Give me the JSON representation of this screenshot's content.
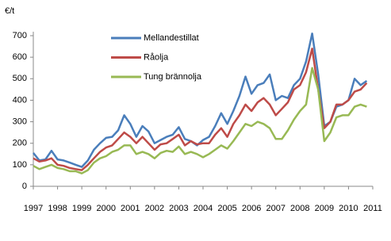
{
  "chart_data": {
    "type": "line",
    "y_label": "€/t",
    "x": [
      1997,
      1997.25,
      1997.5,
      1997.75,
      1998,
      1998.25,
      1998.5,
      1998.75,
      1999,
      1999.25,
      1999.5,
      1999.75,
      2000,
      2000.25,
      2000.5,
      2000.75,
      2001,
      2001.25,
      2001.5,
      2001.75,
      2002,
      2002.25,
      2002.5,
      2002.75,
      2003,
      2003.25,
      2003.5,
      2003.75,
      2004,
      2004.25,
      2004.5,
      2004.75,
      2005,
      2005.25,
      2005.5,
      2005.75,
      2006,
      2006.25,
      2006.5,
      2006.75,
      2007,
      2007.25,
      2007.5,
      2007.75,
      2008,
      2008.25,
      2008.5,
      2008.75,
      2009,
      2009.25,
      2009.5,
      2009.75,
      2010,
      2010.25,
      2010.5,
      2010.75
    ],
    "series": [
      {
        "name": "Mellandestillat",
        "color": "#4a7ebb",
        "values": [
          155,
          120,
          125,
          165,
          125,
          120,
          110,
          100,
          90,
          120,
          170,
          200,
          225,
          230,
          260,
          330,
          290,
          230,
          280,
          255,
          200,
          215,
          230,
          240,
          275,
          220,
          210,
          190,
          215,
          230,
          280,
          340,
          290,
          350,
          420,
          510,
          430,
          470,
          480,
          520,
          400,
          420,
          410,
          470,
          500,
          580,
          710,
          520,
          280,
          300,
          370,
          380,
          400,
          500,
          470,
          490
        ]
      },
      {
        "name": "Råolja",
        "color": "#be4b48",
        "values": [
          130,
          115,
          120,
          130,
          100,
          95,
          85,
          80,
          75,
          100,
          130,
          160,
          180,
          190,
          220,
          250,
          230,
          200,
          230,
          200,
          170,
          195,
          200,
          220,
          240,
          190,
          210,
          195,
          200,
          200,
          240,
          270,
          230,
          290,
          330,
          380,
          350,
          390,
          410,
          380,
          330,
          360,
          390,
          450,
          470,
          530,
          640,
          450,
          270,
          300,
          380,
          380,
          400,
          440,
          450,
          480
        ]
      },
      {
        "name": "Tung brännolja",
        "color": "#98b954",
        "values": [
          95,
          80,
          90,
          100,
          85,
          80,
          70,
          70,
          60,
          75,
          110,
          130,
          140,
          160,
          170,
          190,
          190,
          150,
          160,
          150,
          130,
          155,
          165,
          160,
          185,
          150,
          160,
          150,
          135,
          150,
          170,
          190,
          175,
          210,
          250,
          290,
          280,
          300,
          290,
          270,
          220,
          220,
          260,
          310,
          350,
          380,
          550,
          450,
          210,
          250,
          320,
          330,
          330,
          370,
          380,
          370
        ]
      }
    ],
    "xlim": [
      1997,
      2011
    ],
    "xticks": [
      1997,
      1998,
      1999,
      2000,
      2001,
      2002,
      2003,
      2004,
      2005,
      2006,
      2007,
      2008,
      2009,
      2010,
      2011
    ],
    "ylim": [
      0,
      700
    ],
    "yticks": [
      0,
      100,
      200,
      300,
      400,
      500,
      600,
      700
    ],
    "grid": false
  }
}
